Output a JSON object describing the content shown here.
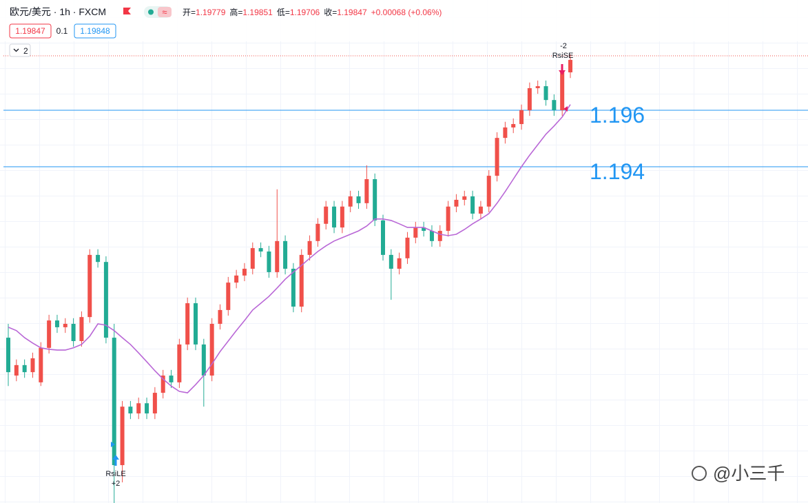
{
  "header": {
    "symbol": "欧元/美元 · 1h · FXCM",
    "ohlc": [
      {
        "label": "开=",
        "value": "1.19779"
      },
      {
        "label": "高=",
        "value": "1.19851"
      },
      {
        "label": "低=",
        "value": "1.19706"
      },
      {
        "label": "收=",
        "value": "1.19847"
      }
    ],
    "change": "+0.00068 (+0.06%)",
    "bid": "1.19847",
    "spread": "0.1",
    "ask": "1.19848",
    "collapse": "2"
  },
  "watermark": "@小三千",
  "chart_data": {
    "type": "candlestick",
    "up_color": "#f0504a",
    "down_color": "#22ab94",
    "ylim": [
      1.1821,
      1.1999
    ],
    "candles": [
      [
        1.18795,
        1.18844,
        1.18624,
        1.18673
      ],
      [
        1.18661,
        1.18718,
        1.18641,
        1.18698
      ],
      [
        1.18698,
        1.18718,
        1.18653,
        1.18673
      ],
      [
        1.18673,
        1.18742,
        1.18653,
        1.18722
      ],
      [
        1.18637,
        1.18779,
        1.18624,
        1.18759
      ],
      [
        1.18759,
        1.18876,
        1.18739,
        1.18856
      ],
      [
        1.18856,
        1.18876,
        1.18812,
        1.18832
      ],
      [
        1.18832,
        1.18864,
        1.18812,
        1.18844
      ],
      [
        1.18844,
        1.18864,
        1.18763,
        1.18783
      ],
      [
        1.18783,
        1.18888,
        1.18763,
        1.18868
      ],
      [
        1.18868,
        1.19108,
        1.18848,
        1.19088
      ],
      [
        1.19088,
        1.19108,
        1.19043,
        1.19063
      ],
      [
        1.19063,
        1.19083,
        1.18775,
        1.18795
      ],
      [
        1.18795,
        1.18844,
        1.1821,
        1.18344
      ],
      [
        1.18344,
        1.18571,
        1.18283,
        1.18551
      ],
      [
        1.18551,
        1.18571,
        1.18507,
        1.18527
      ],
      [
        1.18527,
        1.18583,
        1.18507,
        1.18563
      ],
      [
        1.18563,
        1.18583,
        1.18507,
        1.18527
      ],
      [
        1.18527,
        1.1862,
        1.18507,
        1.186
      ],
      [
        1.186,
        1.18681,
        1.1858,
        1.18661
      ],
      [
        1.18661,
        1.18681,
        1.18617,
        1.18637
      ],
      [
        1.18637,
        1.18791,
        1.18617,
        1.18771
      ],
      [
        1.18771,
        1.18937,
        1.18751,
        1.18917
      ],
      [
        1.18917,
        1.18937,
        1.18751,
        1.18771
      ],
      [
        1.18771,
        1.18791,
        1.18551,
        1.18661
      ],
      [
        1.18661,
        1.18864,
        1.18641,
        1.18844
      ],
      [
        1.18844,
        1.18913,
        1.18824,
        1.18893
      ],
      [
        1.18893,
        1.1901,
        1.18873,
        1.1899
      ],
      [
        1.1899,
        1.19035,
        1.1897,
        1.19015
      ],
      [
        1.19015,
        1.19059,
        1.18995,
        1.19039
      ],
      [
        1.19039,
        1.19132,
        1.19019,
        1.19112
      ],
      [
        1.19112,
        1.19132,
        1.1908,
        1.191
      ],
      [
        1.191,
        1.1912,
        1.19007,
        1.19027
      ],
      [
        1.19027,
        1.1932,
        1.19007,
        1.19137
      ],
      [
        1.19137,
        1.19157,
        1.19019,
        1.19039
      ],
      [
        1.19039,
        1.19059,
        1.18885,
        1.18905
      ],
      [
        1.18905,
        1.19108,
        1.18885,
        1.19088
      ],
      [
        1.19088,
        1.19157,
        1.19068,
        1.19137
      ],
      [
        1.19137,
        1.19218,
        1.19117,
        1.19198
      ],
      [
        1.19198,
        1.19279,
        1.19178,
        1.19259
      ],
      [
        1.19259,
        1.19279,
        1.19165,
        1.19185
      ],
      [
        1.19185,
        1.19279,
        1.19165,
        1.19259
      ],
      [
        1.19259,
        1.19315,
        1.19239,
        1.19295
      ],
      [
        1.19295,
        1.19315,
        1.19251,
        1.19271
      ],
      [
        1.19271,
        1.19405,
        1.19251,
        1.19356
      ],
      [
        1.19356,
        1.19376,
        1.1919,
        1.1921
      ],
      [
        1.1921,
        1.1923,
        1.19068,
        1.19088
      ],
      [
        1.19088,
        1.19108,
        1.18929,
        1.19039
      ],
      [
        1.19039,
        1.19096,
        1.19019,
        1.19076
      ],
      [
        1.19076,
        1.19169,
        1.19056,
        1.19149
      ],
      [
        1.19149,
        1.19205,
        1.19129,
        1.19185
      ],
      [
        1.19185,
        1.19205,
        1.19153,
        1.19173
      ],
      [
        1.19173,
        1.19193,
        1.19117,
        1.19137
      ],
      [
        1.19137,
        1.19193,
        1.19117,
        1.19173
      ],
      [
        1.19173,
        1.19279,
        1.19153,
        1.19259
      ],
      [
        1.19259,
        1.19303,
        1.19239,
        1.19283
      ],
      [
        1.19283,
        1.19315,
        1.19263,
        1.19295
      ],
      [
        1.19295,
        1.19315,
        1.19214,
        1.19234
      ],
      [
        1.19234,
        1.19279,
        1.19214,
        1.19259
      ],
      [
        1.19259,
        1.19388,
        1.19239,
        1.19368
      ],
      [
        1.19368,
        1.19522,
        1.19348,
        1.19502
      ],
      [
        1.19502,
        1.19559,
        1.19482,
        1.19539
      ],
      [
        1.19539,
        1.19571,
        1.19519,
        1.19551
      ],
      [
        1.19551,
        1.1962,
        1.19531,
        1.196
      ],
      [
        1.196,
        1.19698,
        1.1958,
        1.19678
      ],
      [
        1.19678,
        1.19705,
        1.19658,
        1.19685
      ],
      [
        1.19685,
        1.19705,
        1.19616,
        1.19636
      ],
      [
        1.19636,
        1.19656,
        1.1958,
        1.196
      ],
      [
        1.196,
        1.19754,
        1.1958,
        1.19734
      ],
      [
        1.19734,
        1.19798,
        1.19714,
        1.19778
      ]
    ],
    "moving_average": {
      "color": "#b967d6",
      "values": [
        1.18832,
        1.1882,
        1.18795,
        1.18776,
        1.18759,
        1.18754,
        1.18751,
        1.18751,
        1.18759,
        1.18771,
        1.188,
        1.18844,
        1.18839,
        1.1882,
        1.18795,
        1.18771,
        1.18741,
        1.1871,
        1.18678,
        1.18649,
        1.18624,
        1.18605,
        1.186,
        1.18629,
        1.18661,
        1.18702,
        1.18746,
        1.18783,
        1.1882,
        1.18856,
        1.18893,
        1.18917,
        1.18941,
        1.18971,
        1.19002,
        1.19027,
        1.19051,
        1.19076,
        1.191,
        1.1912,
        1.19137,
        1.19149,
        1.19161,
        1.19173,
        1.1919,
        1.19215,
        1.19215,
        1.1921,
        1.19198,
        1.19185,
        1.19185,
        1.19185,
        1.19173,
        1.19161,
        1.19156,
        1.19161,
        1.19178,
        1.19198,
        1.19215,
        1.19234,
        1.19271,
        1.19312,
        1.19356,
        1.194,
        1.19441,
        1.19478,
        1.19515,
        1.19544,
        1.19576,
        1.1962
      ]
    },
    "hlines": [
      {
        "value": 1.196,
        "color": "#2196f3"
      },
      {
        "value": 1.194,
        "color": "#2196f3"
      }
    ],
    "signals": [
      {
        "name": "RsiLE",
        "count": "+2",
        "color": "#2196f3"
      },
      {
        "name": "RsiSE",
        "count": "-2",
        "color": "#e91e63"
      }
    ]
  }
}
